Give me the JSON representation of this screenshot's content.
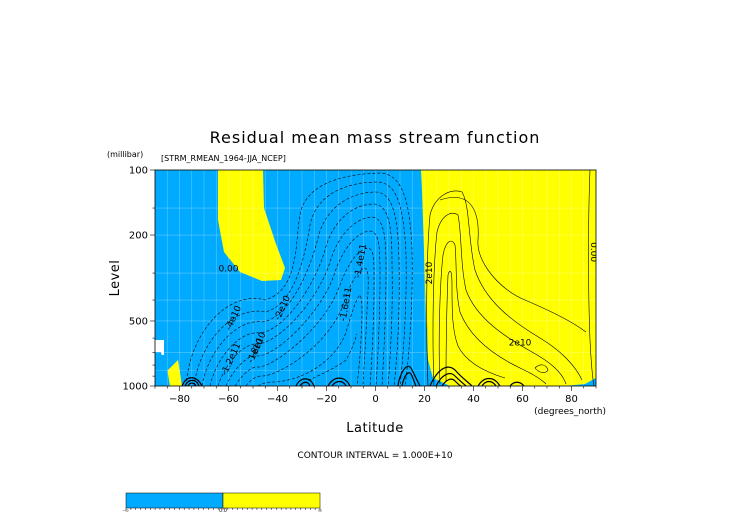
{
  "chart_data": {
    "type": "contour",
    "title": "Residual mean mass stream function",
    "dataset_label": "[STRM_RMEAN_1964-JJA_NCEP]",
    "ylabel": "Level",
    "yunit": "(millibar)",
    "xlabel": "Latitude",
    "xunit": "(degrees_north)",
    "xlim": [
      -90,
      90
    ],
    "ylim": [
      100,
      1000
    ],
    "yscale": "log",
    "y_reversed": true,
    "x_ticks": [
      -80,
      -60,
      -40,
      -20,
      0,
      20,
      40,
      60,
      80
    ],
    "y_ticks": [
      100,
      200,
      500,
      1000
    ],
    "contour_interval_text": "CONTOUR INTERVAL = 1.000E+10",
    "negative_color": "#00aaff",
    "positive_color": "#ffff00",
    "colorbar": {
      "colors": [
        "#00aaff",
        "#ffff00"
      ],
      "labels": [
        "-∞",
        "0.0",
        "∞"
      ]
    },
    "contour_labels": [
      {
        "text": "0.00",
        "lat": -60,
        "p": 295
      },
      {
        "text": "-2e10",
        "lat": -37,
        "p": 440
      },
      {
        "text": "-4e10",
        "lat": -57,
        "p": 490
      },
      {
        "text": "-8e10",
        "lat": -47,
        "p": 650
      },
      {
        "text": "-1.2e11",
        "lat": -58,
        "p": 760
      },
      {
        "text": "-1e10",
        "lat": -48,
        "p": 695
      },
      {
        "text": "-1.4e11",
        "lat": -5,
        "p": 265
      },
      {
        "text": "-1.6e11",
        "lat": -11,
        "p": 420
      },
      {
        "text": "2e10",
        "lat": 23,
        "p": 300
      },
      {
        "text": "2e10",
        "lat": 59,
        "p": 650
      },
      {
        "text": "0.00",
        "lat": 88,
        "p": 240
      }
    ]
  }
}
